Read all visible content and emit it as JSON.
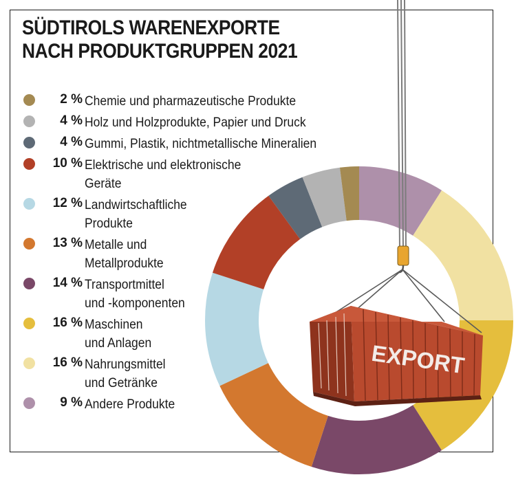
{
  "title_line1": "SÜDTIROLS WARENEXPORTE",
  "title_line2": "NACH PRODUKTGRUPPEN 2021",
  "container_label": "EXPORT",
  "colors": {
    "chemie": "#a48a52",
    "holz": "#b3b3b3",
    "gummi": "#5e6a76",
    "elektro": "#b24027",
    "landwirtschaft": "#b6d8e4",
    "metalle": "#d3782f",
    "transport": "#7a4868",
    "maschinen": "#e5be3d",
    "nahrung": "#f1e1a2",
    "andere": "#ae90aa",
    "container": "#b94a2e"
  },
  "chart_data": {
    "type": "pie",
    "title": "SÜDTIROLS WARENEXPORTE NACH PRODUKTGRUPPEN 2021",
    "unit": "%",
    "slices": [
      {
        "label": "Chemie und pharmazeutische Produkte",
        "label_lines": [
          "Chemie und pharmazeutische Produkte"
        ],
        "pct_text": "2 %",
        "value": 2,
        "color": "#a48a52"
      },
      {
        "label": "Holz und Holzprodukte, Papier und Druck",
        "label_lines": [
          "Holz und Holzprodukte, Papier und Druck"
        ],
        "pct_text": "4 %",
        "value": 4,
        "color": "#b3b3b3"
      },
      {
        "label": "Gummi, Plastik, nichtmetallische Mineralien",
        "label_lines": [
          "Gummi, Plastik, nichtmetallische Mineralien"
        ],
        "pct_text": "4 %",
        "value": 4,
        "color": "#5e6a76"
      },
      {
        "label": "Elektrische und elektronische Geräte",
        "label_lines": [
          "Elektrische und elektronische",
          "Geräte"
        ],
        "pct_text": "10 %",
        "value": 10,
        "color": "#b24027"
      },
      {
        "label": "Landwirtschaftliche Produkte",
        "label_lines": [
          "Landwirtschaftliche",
          "Produkte"
        ],
        "pct_text": "12 %",
        "value": 12,
        "color": "#b6d8e4"
      },
      {
        "label": "Metalle und Metallprodukte",
        "label_lines": [
          "Metalle und",
          "Metallprodukte"
        ],
        "pct_text": "13 %",
        "value": 13,
        "color": "#d3782f"
      },
      {
        "label": "Transportmittel und -komponenten",
        "label_lines": [
          "Transportmittel",
          "und -komponenten"
        ],
        "pct_text": "14 %",
        "value": 14,
        "color": "#7a4868"
      },
      {
        "label": "Maschinen und Anlagen",
        "label_lines": [
          "Maschinen",
          "und Anlagen"
        ],
        "pct_text": "16 %",
        "value": 16,
        "color": "#e5be3d"
      },
      {
        "label": "Nahrungsmittel und Getränke",
        "label_lines": [
          "Nahrungsmittel",
          "und Getränke"
        ],
        "pct_text": "16 %",
        "value": 16,
        "color": "#f1e1a2"
      },
      {
        "label": "Andere Produkte",
        "label_lines": [
          "Andere Produkte"
        ],
        "pct_text": "9 %",
        "value": 9,
        "color": "#ae90aa"
      }
    ]
  }
}
